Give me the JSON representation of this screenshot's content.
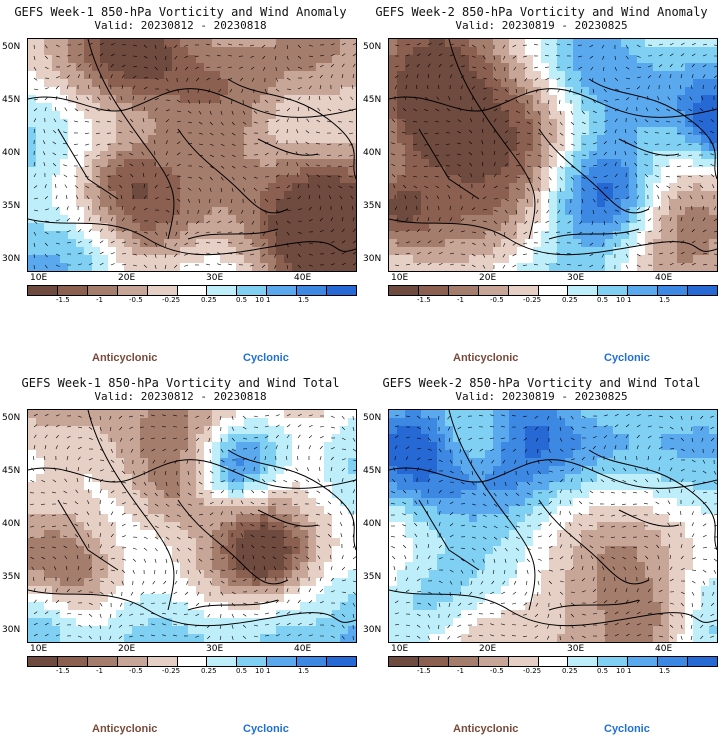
{
  "panels": [
    {
      "title": "GEFS Week-1 850-hPa Vorticity and Wind Anomaly",
      "valid": "Valid: 20230812 - 20230818"
    },
    {
      "title": "GEFS Week-2 850-hPa Vorticity and Wind Anomaly",
      "valid": "Valid: 20230819 - 20230825"
    },
    {
      "title": "GEFS Week-1 850-hPa Vorticity and Wind Total",
      "valid": "Valid: 20230812 - 20230818"
    },
    {
      "title": "GEFS Week-2 850-hPa Vorticity and Wind Total",
      "valid": "Valid: 20230819 - 20230825"
    }
  ],
  "lat_labels": [
    "50N",
    "45N",
    "40N",
    "35N",
    "30N"
  ],
  "lon_labels": [
    "10E",
    "20E",
    "30E",
    "40E"
  ],
  "colorbar": {
    "colors": [
      "#6f4a3e",
      "#8b6050",
      "#a57d6d",
      "#c7a597",
      "#e6d0c6",
      "#ffffff",
      "#bfeefb",
      "#7fd0f3",
      "#5aa8ee",
      "#3d88e3",
      "#2668d4"
    ],
    "ticks": [
      "-1.5",
      "-1",
      "-0.5",
      "-0.25",
      "0.25",
      "0.5",
      "1",
      "1.5"
    ],
    "extra_label": "10"
  },
  "legend": {
    "anticyclonic": "Anticyclonic",
    "cyclonic": "Cyclonic",
    "anti_color": "#7a4a3a",
    "cyc_color": "#1f6fd9"
  }
}
